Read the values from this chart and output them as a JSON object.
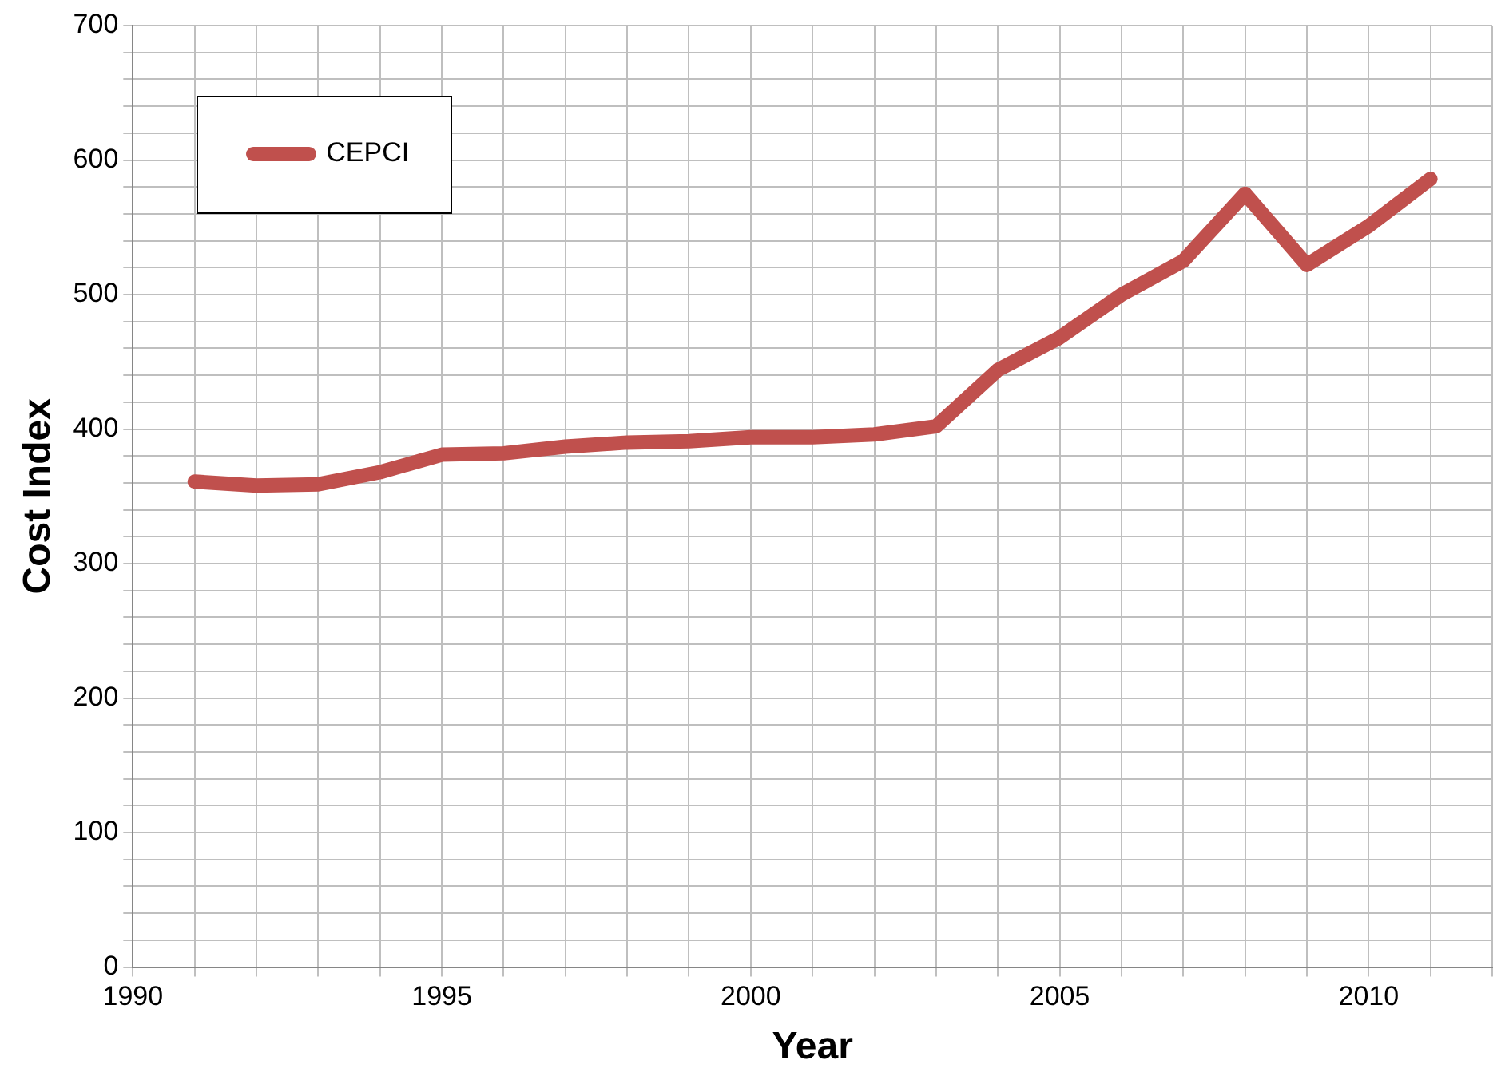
{
  "chart_data": {
    "type": "line",
    "xlabel": "Year",
    "ylabel": "Cost Index",
    "x": [
      1991,
      1992,
      1993,
      1994,
      1995,
      1996,
      1997,
      1998,
      1999,
      2000,
      2001,
      2002,
      2003,
      2004,
      2005,
      2006,
      2007,
      2008,
      2009,
      2010,
      2011
    ],
    "series": [
      {
        "name": "CEPCI",
        "color": "#c0504d",
        "values": [
          361,
          358,
          359,
          368,
          381,
          382,
          387,
          390,
          391,
          394,
          394,
          396,
          402,
          444,
          468,
          500,
          525,
          575,
          522,
          551,
          586
        ]
      }
    ],
    "xlim": [
      1990,
      2012
    ],
    "xticks": [
      1990,
      {
        "value": 1991,
        "label": null
      },
      {
        "value": 1992,
        "label": null
      },
      {
        "value": 1993,
        "label": null
      },
      {
        "value": 1994,
        "label": null
      },
      1995,
      {
        "value": 1996,
        "label": null
      },
      {
        "value": 1997,
        "label": null
      },
      {
        "value": 1998,
        "label": null
      },
      {
        "value": 1999,
        "label": null
      },
      2000,
      {
        "value": 2001,
        "label": null
      },
      {
        "value": 2002,
        "label": null
      },
      {
        "value": 2003,
        "label": null
      },
      {
        "value": 2004,
        "label": null
      },
      2005,
      {
        "value": 2006,
        "label": null
      },
      {
        "value": 2007,
        "label": null
      },
      {
        "value": 2008,
        "label": null
      },
      {
        "value": 2009,
        "label": null
      },
      2010,
      {
        "value": 2011,
        "label": null
      },
      {
        "value": 2012,
        "label": null
      }
    ],
    "ylim": [
      0,
      700
    ],
    "yticks": [
      0,
      {
        "value": 20,
        "label": null
      },
      {
        "value": 40,
        "label": null
      },
      {
        "value": 60,
        "label": null
      },
      {
        "value": 80,
        "label": null
      },
      100,
      {
        "value": 120,
        "label": null
      },
      {
        "value": 140,
        "label": null
      },
      {
        "value": 160,
        "label": null
      },
      {
        "value": 180,
        "label": null
      },
      200,
      {
        "value": 220,
        "label": null
      },
      {
        "value": 240,
        "label": null
      },
      {
        "value": 260,
        "label": null
      },
      {
        "value": 280,
        "label": null
      },
      300,
      {
        "value": 320,
        "label": null
      },
      {
        "value": 340,
        "label": null
      },
      {
        "value": 360,
        "label": null
      },
      {
        "value": 380,
        "label": null
      },
      400,
      {
        "value": 420,
        "label": null
      },
      {
        "value": 440,
        "label": null
      },
      {
        "value": 460,
        "label": null
      },
      {
        "value": 480,
        "label": null
      },
      500,
      {
        "value": 520,
        "label": null
      },
      {
        "value": 540,
        "label": null
      },
      {
        "value": 560,
        "label": null
      },
      {
        "value": 580,
        "label": null
      },
      600,
      {
        "value": 620,
        "label": null
      },
      {
        "value": 640,
        "label": null
      },
      {
        "value": 660,
        "label": null
      },
      {
        "value": 680,
        "label": null
      },
      700
    ],
    "grid": true,
    "legend": "top left",
    "marker": "none",
    "line_style": "solid"
  }
}
